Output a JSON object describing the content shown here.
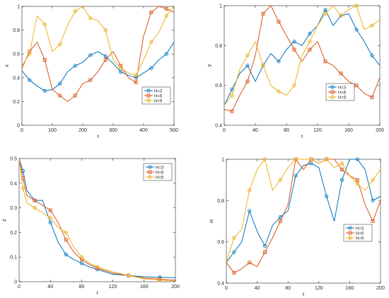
{
  "colors": {
    "series_1": "#0072BD",
    "series_2": "#D95319",
    "series_3": "#EDB120",
    "axis": "#262626",
    "legend_border": "#262626"
  },
  "legend_placement": "inside-right",
  "chart_data": [
    {
      "type": "line",
      "title": "",
      "xlabel": "t",
      "ylabel": "x",
      "xlim": [
        0,
        500
      ],
      "ylim": [
        0,
        1
      ],
      "xticks": [
        0,
        100,
        200,
        300,
        400,
        500
      ],
      "yticks": [
        0,
        0.2,
        0.4,
        0.6,
        0.8,
        1
      ],
      "grid": false,
      "legend": [
        "H=3",
        "H=6",
        "H=9"
      ],
      "series": [
        {
          "name": "H=3",
          "marker": "circle",
          "x": [
            0,
            25,
            50,
            75,
            100,
            125,
            150,
            175,
            200,
            225,
            250,
            275,
            300,
            325,
            350,
            375,
            400,
            425,
            450,
            475,
            500
          ],
          "values": [
            0.46,
            0.38,
            0.33,
            0.29,
            0.3,
            0.35,
            0.45,
            0.5,
            0.53,
            0.59,
            0.62,
            0.58,
            0.52,
            0.45,
            0.42,
            0.4,
            0.44,
            0.48,
            0.55,
            0.6,
            0.7
          ]
        },
        {
          "name": "H=6",
          "marker": "square",
          "x": [
            0,
            25,
            50,
            75,
            100,
            125,
            150,
            175,
            200,
            225,
            250,
            275,
            300,
            325,
            350,
            375,
            400,
            425,
            450,
            475,
            500
          ],
          "values": [
            0.48,
            0.62,
            0.7,
            0.55,
            0.3,
            0.25,
            0.2,
            0.25,
            0.35,
            0.38,
            0.45,
            0.55,
            0.62,
            0.5,
            0.4,
            0.36,
            0.75,
            0.95,
            1.0,
            0.98,
            0.95
          ]
        },
        {
          "name": "H=9",
          "marker": "diamond",
          "x": [
            0,
            25,
            50,
            75,
            100,
            125,
            150,
            175,
            200,
            225,
            250,
            275,
            300,
            325,
            350,
            375,
            400,
            425,
            450,
            475,
            500
          ],
          "values": [
            0.5,
            0.6,
            0.92,
            0.85,
            0.62,
            0.68,
            0.84,
            0.96,
            1.0,
            0.9,
            0.88,
            0.8,
            0.55,
            0.48,
            0.44,
            0.42,
            0.55,
            0.7,
            0.78,
            0.92,
            1.0
          ]
        }
      ]
    },
    {
      "type": "line",
      "title": "",
      "xlabel": "t",
      "ylabel": "y",
      "xlim": [
        0,
        200
      ],
      "ylim": [
        0.4,
        1
      ],
      "xticks": [
        0,
        40,
        80,
        120,
        160,
        200
      ],
      "yticks": [
        0.4,
        0.6,
        0.8,
        1
      ],
      "grid": false,
      "legend": [
        "H=3",
        "H=6",
        "H=9"
      ],
      "series": [
        {
          "name": "H=3",
          "marker": "circle",
          "x": [
            0,
            10,
            20,
            30,
            40,
            50,
            60,
            70,
            80,
            90,
            100,
            110,
            120,
            130,
            140,
            150,
            160,
            170,
            180,
            190,
            200
          ],
          "values": [
            0.5,
            0.58,
            0.66,
            0.7,
            0.62,
            0.7,
            0.76,
            0.72,
            0.78,
            0.82,
            0.8,
            0.86,
            0.9,
            0.98,
            0.9,
            0.95,
            0.96,
            0.88,
            0.82,
            0.75,
            0.7
          ]
        },
        {
          "name": "H=6",
          "marker": "square",
          "x": [
            0,
            10,
            20,
            30,
            40,
            50,
            60,
            70,
            80,
            90,
            100,
            110,
            120,
            130,
            140,
            150,
            160,
            170,
            180,
            190,
            200
          ],
          "values": [
            0.48,
            0.47,
            0.55,
            0.62,
            0.75,
            0.96,
            1.0,
            0.92,
            0.85,
            0.78,
            0.72,
            0.78,
            0.82,
            0.72,
            0.7,
            0.66,
            0.62,
            0.6,
            0.56,
            0.54,
            0.64
          ]
        },
        {
          "name": "H=9",
          "marker": "diamond",
          "x": [
            0,
            10,
            20,
            30,
            40,
            50,
            60,
            70,
            80,
            90,
            100,
            110,
            120,
            130,
            140,
            150,
            160,
            170,
            180,
            190,
            200
          ],
          "values": [
            0.5,
            0.55,
            0.68,
            0.75,
            0.82,
            0.7,
            0.6,
            0.57,
            0.55,
            0.6,
            0.75,
            0.82,
            0.9,
            0.96,
            1.0,
            0.95,
            0.98,
            1.0,
            0.88,
            0.9,
            0.93
          ]
        }
      ]
    },
    {
      "type": "line",
      "title": "",
      "xlabel": "t",
      "ylabel": "z",
      "xlim": [
        0,
        200
      ],
      "ylim": [
        0,
        0.5
      ],
      "xticks": [
        0,
        40,
        80,
        120,
        160,
        200
      ],
      "yticks": [
        0,
        0.1,
        0.2,
        0.3,
        0.4,
        0.5
      ],
      "grid": false,
      "legend": [
        "H=3",
        "H=6",
        "H=9"
      ],
      "series": [
        {
          "name": "H=3",
          "marker": "circle",
          "x": [
            0,
            5,
            10,
            20,
            30,
            40,
            50,
            60,
            70,
            80,
            90,
            100,
            120,
            140,
            160,
            180,
            200
          ],
          "values": [
            0.5,
            0.45,
            0.37,
            0.33,
            0.33,
            0.24,
            0.16,
            0.11,
            0.09,
            0.075,
            0.06,
            0.05,
            0.03,
            0.025,
            0.02,
            0.018,
            0.016
          ]
        },
        {
          "name": "H=6",
          "marker": "square",
          "x": [
            0,
            5,
            10,
            20,
            30,
            40,
            50,
            60,
            70,
            80,
            90,
            100,
            120,
            140,
            160,
            180,
            200
          ],
          "values": [
            0.5,
            0.42,
            0.35,
            0.33,
            0.31,
            0.29,
            0.24,
            0.17,
            0.12,
            0.09,
            0.07,
            0.055,
            0.035,
            0.025,
            0.015,
            0.01,
            0.006
          ]
        },
        {
          "name": "H=9",
          "marker": "diamond",
          "x": [
            0,
            5,
            10,
            20,
            30,
            40,
            50,
            60,
            70,
            80,
            90,
            100,
            120,
            140,
            160,
            180,
            200
          ],
          "values": [
            0.5,
            0.38,
            0.32,
            0.3,
            0.28,
            0.26,
            0.22,
            0.2,
            0.14,
            0.1,
            0.075,
            0.06,
            0.04,
            0.025,
            0.012,
            0.007,
            0.004
          ]
        }
      ]
    },
    {
      "type": "line",
      "title": "",
      "xlabel": "t",
      "ylabel": "w",
      "xlim": [
        0,
        200
      ],
      "ylim": [
        0.4,
        1
      ],
      "xticks": [
        0,
        40,
        80,
        120,
        160,
        200
      ],
      "yticks": [
        0.4,
        0.6,
        0.8,
        1
      ],
      "grid": false,
      "legend": [
        "H=3",
        "H=6",
        "H=9"
      ],
      "series": [
        {
          "name": "H=3",
          "marker": "circle",
          "x": [
            0,
            10,
            20,
            30,
            40,
            50,
            60,
            70,
            80,
            90,
            100,
            110,
            120,
            130,
            140,
            150,
            160,
            170,
            180,
            190,
            200
          ],
          "values": [
            0.5,
            0.55,
            0.6,
            0.75,
            0.65,
            0.58,
            0.68,
            0.72,
            0.75,
            0.92,
            0.97,
            0.98,
            0.96,
            0.82,
            0.7,
            0.9,
            1.0,
            1.0,
            0.95,
            0.8,
            0.82
          ]
        },
        {
          "name": "H=6",
          "marker": "square",
          "x": [
            0,
            10,
            20,
            30,
            40,
            50,
            60,
            70,
            80,
            90,
            100,
            110,
            120,
            130,
            140,
            150,
            160,
            170,
            180,
            190,
            200
          ],
          "values": [
            0.5,
            0.45,
            0.47,
            0.5,
            0.48,
            0.55,
            0.62,
            0.7,
            0.78,
            1.0,
            0.95,
            1.0,
            0.98,
            1.0,
            1.0,
            0.95,
            0.92,
            0.9,
            0.78,
            0.7,
            0.8
          ]
        },
        {
          "name": "H=9",
          "marker": "diamond",
          "x": [
            0,
            10,
            20,
            30,
            40,
            50,
            60,
            70,
            80,
            90,
            100,
            110,
            120,
            130,
            140,
            150,
            160,
            170,
            180,
            190,
            200
          ],
          "values": [
            0.5,
            0.62,
            0.66,
            0.85,
            0.95,
            1.0,
            0.85,
            0.9,
            0.96,
            1.0,
            1.0,
            1.0,
            0.98,
            1.0,
            0.96,
            0.98,
            0.92,
            0.88,
            0.85,
            0.9,
            0.95
          ]
        }
      ]
    }
  ]
}
